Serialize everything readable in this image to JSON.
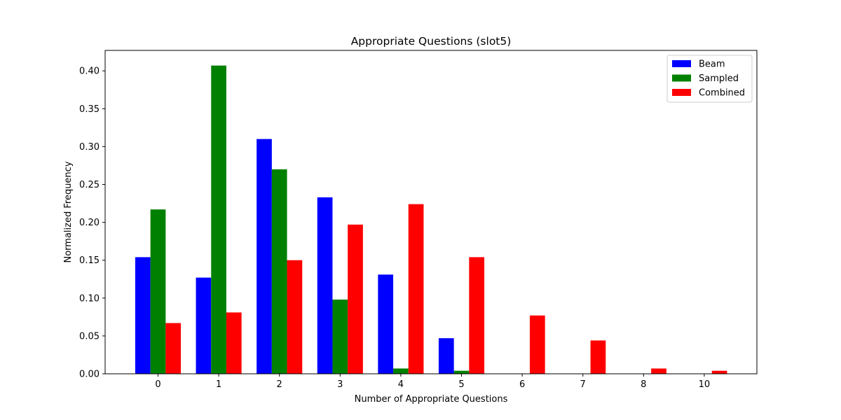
{
  "chart_data": {
    "type": "bar",
    "title": "Appropriate Questions (slot5)",
    "xlabel": "Number of Appropriate Questions",
    "ylabel": "Normalized Frequency",
    "categories": [
      "0",
      "1",
      "2",
      "3",
      "4",
      "5",
      "6",
      "7",
      "8",
      "10"
    ],
    "series": [
      {
        "name": "Beam",
        "color": "#0000ff",
        "values": [
          0.154,
          0.127,
          0.31,
          0.233,
          0.131,
          0.047,
          0.0,
          0.0,
          0.0,
          0.0
        ]
      },
      {
        "name": "Sampled",
        "color": "#008000",
        "values": [
          0.217,
          0.407,
          0.27,
          0.098,
          0.007,
          0.004,
          0.0,
          0.0,
          0.0,
          0.0
        ]
      },
      {
        "name": "Combined",
        "color": "#ff0000",
        "values": [
          0.067,
          0.081,
          0.15,
          0.197,
          0.224,
          0.154,
          0.077,
          0.044,
          0.007,
          0.004
        ]
      }
    ],
    "yticks": [
      "0.00",
      "0.05",
      "0.10",
      "0.15",
      "0.20",
      "0.25",
      "0.30",
      "0.35",
      "0.40"
    ],
    "ylim": [
      0,
      0.427
    ],
    "grid": false,
    "legend_position": "top-right"
  }
}
